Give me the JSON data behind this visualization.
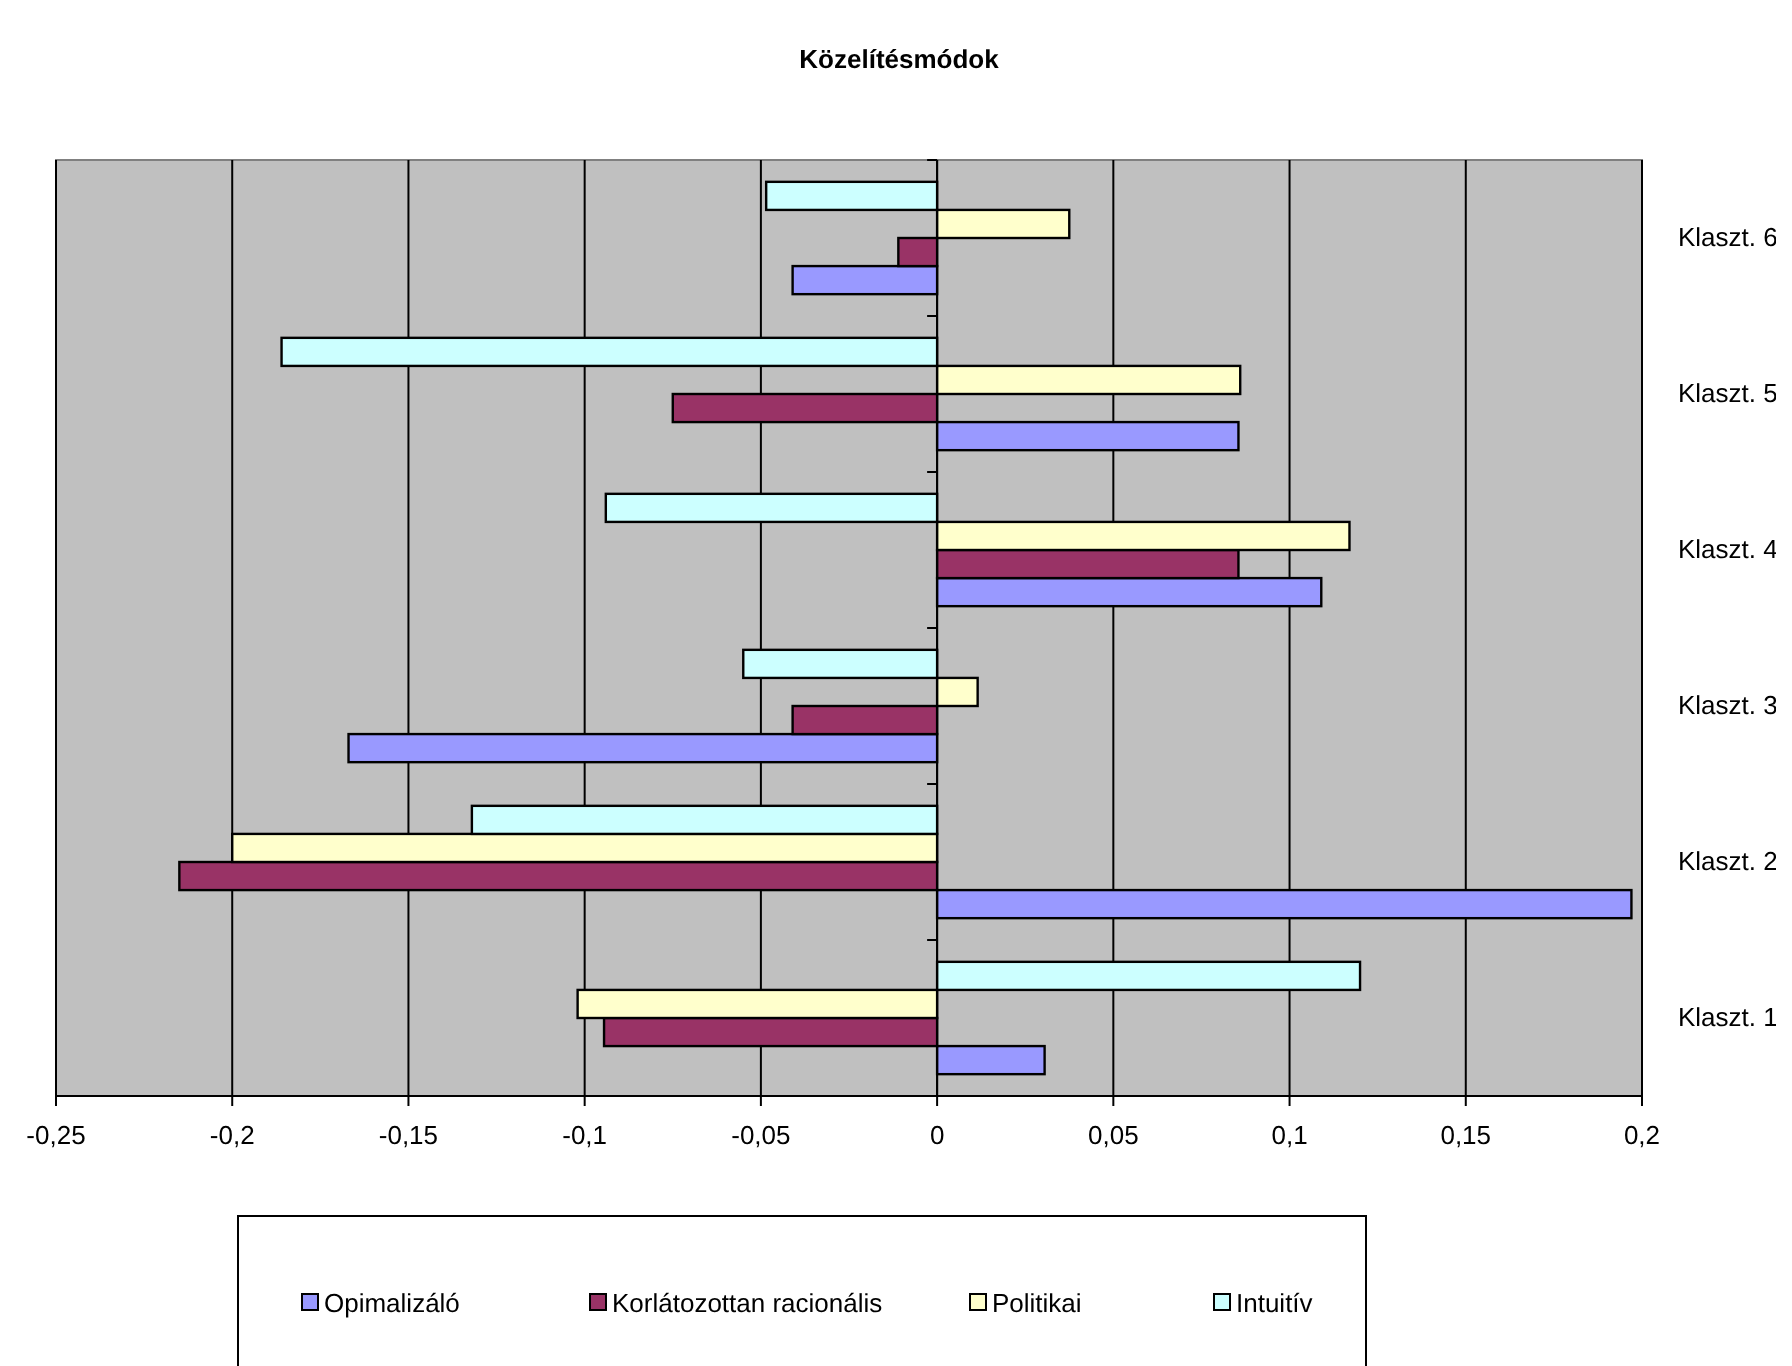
{
  "chart_data": {
    "type": "bar",
    "orientation": "horizontal",
    "title": "Közelítésmódok",
    "categories": [
      "Klaszt. 6",
      "Klaszt. 5",
      "Klaszt. 4",
      "Klaszt. 3",
      "Klaszt. 2",
      "Klaszt. 1"
    ],
    "series": [
      {
        "name": "Opimalizáló",
        "color": "#9999ff",
        "values": [
          -0.041,
          0.0855,
          0.109,
          -0.167,
          0.197,
          0.0305
        ]
      },
      {
        "name": "Korlátozottan racionális",
        "color": "#993366",
        "values": [
          -0.011,
          -0.075,
          0.0855,
          -0.041,
          -0.215,
          -0.0945
        ]
      },
      {
        "name": "Politikai",
        "color": "#ffffcc",
        "values": [
          0.0375,
          0.086,
          0.117,
          0.0115,
          -0.2,
          -0.102
        ]
      },
      {
        "name": "Intuitív",
        "color": "#ccffff",
        "values": [
          -0.0485,
          -0.186,
          -0.094,
          -0.055,
          -0.132,
          0.12
        ]
      }
    ],
    "xlim": [
      -0.25,
      0.2
    ],
    "xticks": [
      {
        "value": -0.25,
        "label": "-0,25"
      },
      {
        "value": -0.2,
        "label": "-0,2"
      },
      {
        "value": -0.15,
        "label": "-0,15"
      },
      {
        "value": -0.1,
        "label": "-0,1"
      },
      {
        "value": -0.05,
        "label": "-0,05"
      },
      0,
      {
        "value": 0.05,
        "label": "0,05"
      },
      {
        "value": 0.1,
        "label": "0,1"
      },
      {
        "value": 0.15,
        "label": "0,15"
      },
      {
        "value": 0.2,
        "label": "0,2"
      }
    ],
    "grid": "x",
    "legend": "bottom"
  }
}
